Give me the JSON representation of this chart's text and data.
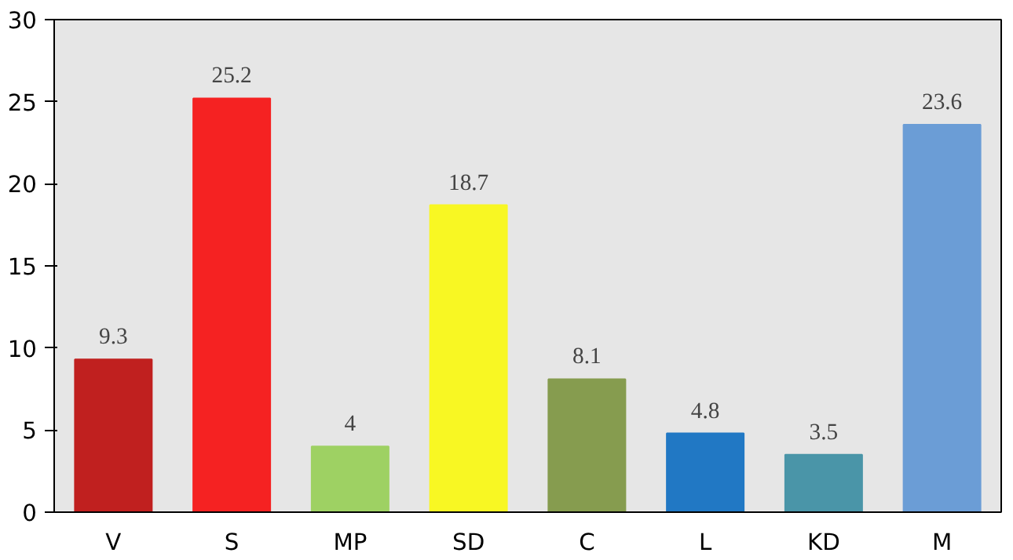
{
  "chart_data": {
    "type": "bar",
    "categories": [
      "V",
      "S",
      "MP",
      "SD",
      "C",
      "L",
      "KD",
      "M"
    ],
    "values": [
      9.3,
      25.2,
      4,
      18.7,
      8.1,
      4.8,
      3.5,
      23.6
    ],
    "colors": [
      "#c0201f",
      "#f52222",
      "#9ed163",
      "#f8f723",
      "#869c4f",
      "#2178c4",
      "#4a95a8",
      "#6b9dd6"
    ],
    "ylim": [
      0,
      30
    ],
    "yticks": [
      0,
      5,
      10,
      15,
      20,
      25,
      30
    ],
    "data_labels": true,
    "grid": false
  }
}
